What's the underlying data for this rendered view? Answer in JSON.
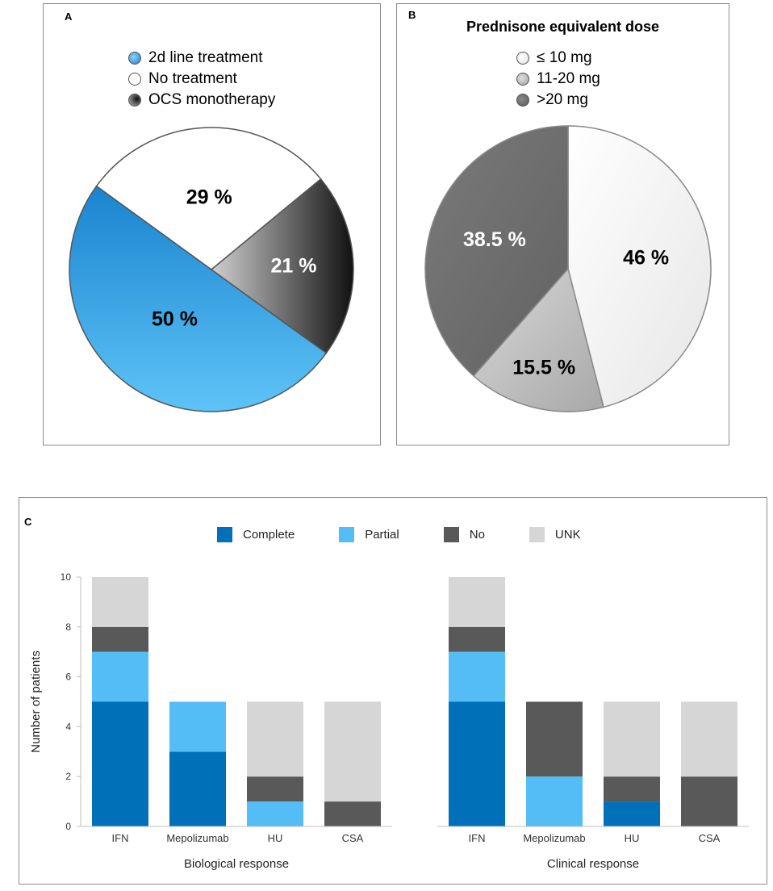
{
  "panel_labels": {
    "a": "A",
    "b": "B",
    "c": "C"
  },
  "chart_data": [
    {
      "panel": "A",
      "type": "pie",
      "title": "",
      "slices": [
        {
          "label": "2d line treatment",
          "value": 50,
          "text": "50 %",
          "color": "#2a9bd9"
        },
        {
          "label": "No treatment",
          "value": 29,
          "text": "29 %",
          "color": "#ffffff"
        },
        {
          "label": "OCS monotherapy",
          "value": 21,
          "text": "21 %",
          "color": "#3a3a3a"
        }
      ]
    },
    {
      "panel": "B",
      "type": "pie",
      "title": "Prednisone equivalent dose",
      "slices": [
        {
          "label": "≤ 10 mg",
          "value": 46,
          "text": "46 %",
          "color": "#f2f2f2"
        },
        {
          "label": "11-20 mg",
          "value": 15.5,
          "text": "15.5 %",
          "color": "#bdbdbd"
        },
        {
          "label": ">20 mg",
          "value": 38.5,
          "text": "38.5 %",
          "color": "#6e6e6e"
        }
      ]
    },
    {
      "panel": "C",
      "type": "bar",
      "stacked": true,
      "ylabel": "Number of patients",
      "ylim": [
        0,
        10
      ],
      "yticks": [
        "0",
        "2",
        "4",
        "6",
        "8",
        "10"
      ],
      "legend": [
        {
          "name": "Complete",
          "color": "#0070b8"
        },
        {
          "name": "Partial",
          "color": "#55bdf6"
        },
        {
          "name": "No",
          "color": "#595959"
        },
        {
          "name": "UNK",
          "color": "#d6d6d6"
        }
      ],
      "groups": [
        {
          "xlabel": "Biological response",
          "categories": [
            "IFN",
            "Mepolizumab",
            "HU",
            "CSA"
          ],
          "series": [
            {
              "name": "Complete",
              "values": [
                5,
                3,
                0,
                0
              ]
            },
            {
              "name": "Partial",
              "values": [
                2,
                2,
                1,
                0
              ]
            },
            {
              "name": "No",
              "values": [
                1,
                0,
                1,
                1
              ]
            },
            {
              "name": "UNK",
              "values": [
                2,
                0,
                3,
                4
              ]
            }
          ]
        },
        {
          "xlabel": "Clinical response",
          "categories": [
            "IFN",
            "Mepolizumab",
            "HU",
            "CSA"
          ],
          "series": [
            {
              "name": "Complete",
              "values": [
                5,
                0,
                1,
                0
              ]
            },
            {
              "name": "Partial",
              "values": [
                2,
                2,
                0,
                0
              ]
            },
            {
              "name": "No",
              "values": [
                1,
                3,
                1,
                2
              ]
            },
            {
              "name": "UNK",
              "values": [
                2,
                0,
                3,
                3
              ]
            }
          ]
        }
      ]
    }
  ]
}
